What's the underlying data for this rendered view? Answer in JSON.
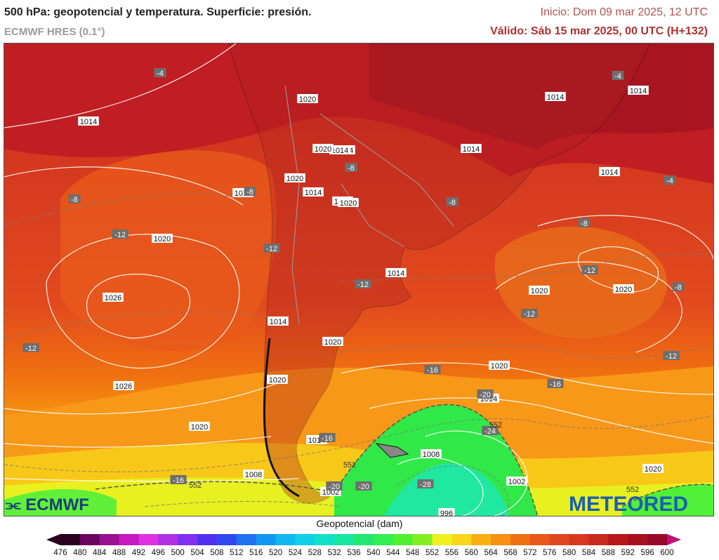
{
  "header": {
    "title": "500 hPa: geopotencial y temperatura. Superficie: presión.",
    "model": "ECMWF HRES (0.1°)",
    "init": "Inicio: Dom 09 mar 2025, 12 UTC",
    "valid": "Válido: Sáb 15 mar 2025, 00 UTC (H+132)"
  },
  "map": {
    "pressure_labels": [
      "1014",
      "1014",
      "1014",
      "1014",
      "1014",
      "1014",
      "1014",
      "1014",
      "1014",
      "1014",
      "1014",
      "1014",
      "1014",
      "1014",
      "1020",
      "1020",
      "1020",
      "1020",
      "1020",
      "1020",
      "1020",
      "1020",
      "1020",
      "1020",
      "1020",
      "1020",
      "1026",
      "1026",
      "1008",
      "1008",
      "1002",
      "1002",
      "996"
    ],
    "temperature_labels": [
      "-4",
      "-4",
      "-4",
      "-8",
      "-8",
      "-8",
      "-8",
      "-8",
      "-8",
      "-12",
      "-12",
      "-12",
      "-12",
      "-12",
      "-12",
      "-12",
      "-16",
      "-16",
      "-16",
      "-16",
      "-20",
      "-20",
      "-20",
      "-24",
      "-28"
    ],
    "height_labels": [
      "552",
      "552",
      "552",
      "552"
    ]
  },
  "colorbar": {
    "title": "Geopotencial (dam)",
    "ticks": [
      "476",
      "480",
      "484",
      "488",
      "492",
      "496",
      "500",
      "504",
      "508",
      "512",
      "516",
      "520",
      "524",
      "528",
      "532",
      "536",
      "540",
      "544",
      "548",
      "552",
      "556",
      "560",
      "564",
      "568",
      "572",
      "576",
      "580",
      "584",
      "588",
      "592",
      "596",
      "600"
    ],
    "colors": [
      "#2a0020",
      "#6a0560",
      "#9a1090",
      "#c818c0",
      "#e030e0",
      "#b030e8",
      "#8030f0",
      "#5030f0",
      "#3048f0",
      "#2070f0",
      "#1098f0",
      "#10b8f0",
      "#10d0e8",
      "#10e0c8",
      "#18e8a0",
      "#20e870",
      "#30f050",
      "#50f030",
      "#80f020",
      "#f0f020",
      "#f8d818",
      "#f8b010",
      "#f89010",
      "#f07010",
      "#e85818",
      "#e04820",
      "#d83820",
      "#c82820",
      "#b81818",
      "#a81020",
      "#980828"
    ],
    "min_label_color": "#2a0020",
    "max_label_color": "#c0107a"
  },
  "logos": {
    "left": "ECMWF",
    "right": "METEORED"
  }
}
